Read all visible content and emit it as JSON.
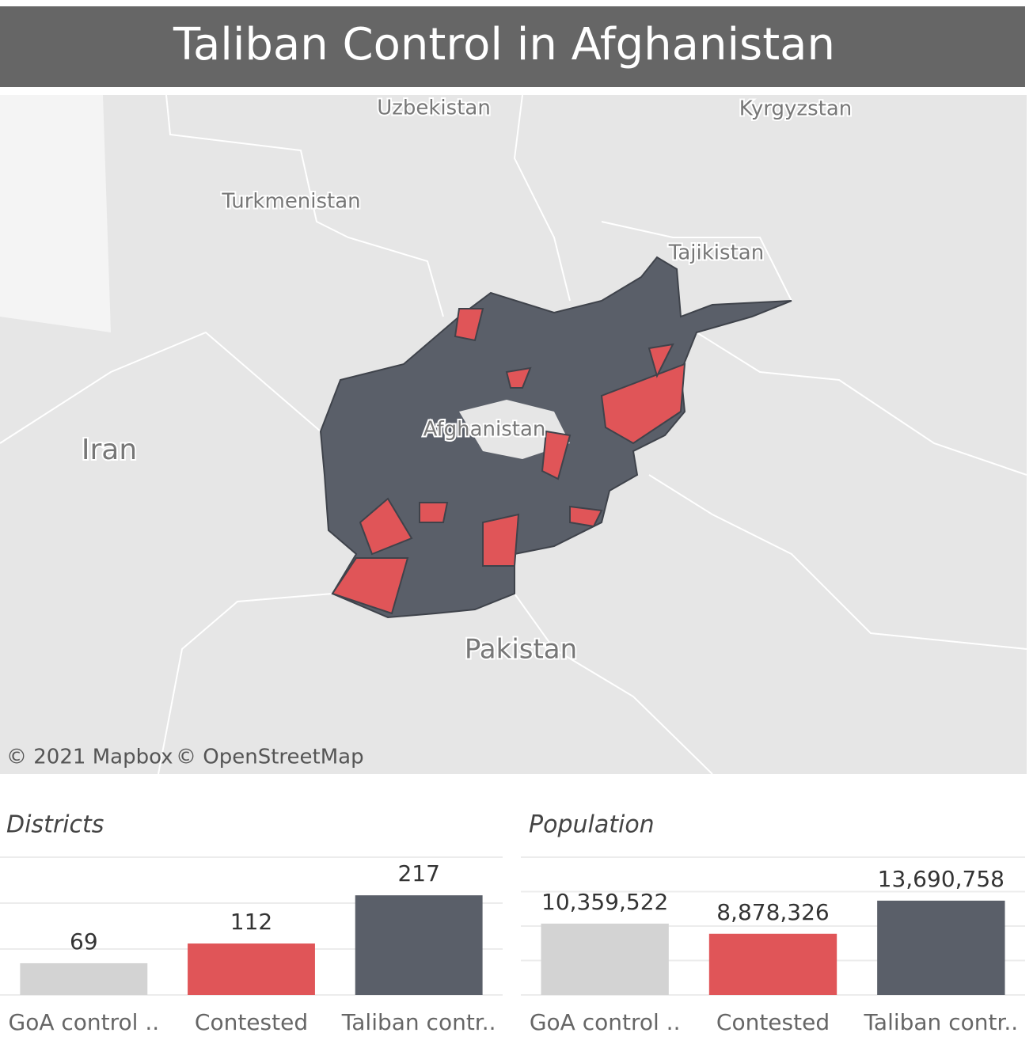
{
  "title": "Taliban Control in Afghanistan",
  "map": {
    "labels": [
      "Uzbekistan",
      "Kyrgyzstan",
      "Turkmenistan",
      "Tajikistan",
      "Iran",
      "Afghanistan",
      "Pakistan"
    ],
    "attribution": [
      "© 2021 Mapbox",
      "© OpenStreetMap"
    ]
  },
  "chart_data": [
    {
      "type": "bar",
      "title": "Districts",
      "categories": [
        "GoA control ..",
        "Contested",
        "Taliban contr.."
      ],
      "values": [
        69,
        112,
        217
      ],
      "colors": [
        "#d3d3d3",
        "#e05558",
        "#5a5f69"
      ],
      "ylim": [
        0,
        300
      ],
      "yticks": [
        0,
        100,
        200,
        300
      ],
      "grid": true
    },
    {
      "type": "bar",
      "title": "Population",
      "categories": [
        "GoA control ..",
        "Contested",
        "Taliban contr.."
      ],
      "values": [
        10359522,
        8878326,
        13690758
      ],
      "value_labels": [
        "10,359,522",
        "8,878,326",
        "13,690,758"
      ],
      "colors": [
        "#d3d3d3",
        "#e05558",
        "#5a5f69"
      ],
      "ylim": [
        0,
        20000000
      ],
      "yticks": [
        0,
        5000000,
        10000000,
        15000000,
        20000000
      ],
      "grid": true
    }
  ]
}
